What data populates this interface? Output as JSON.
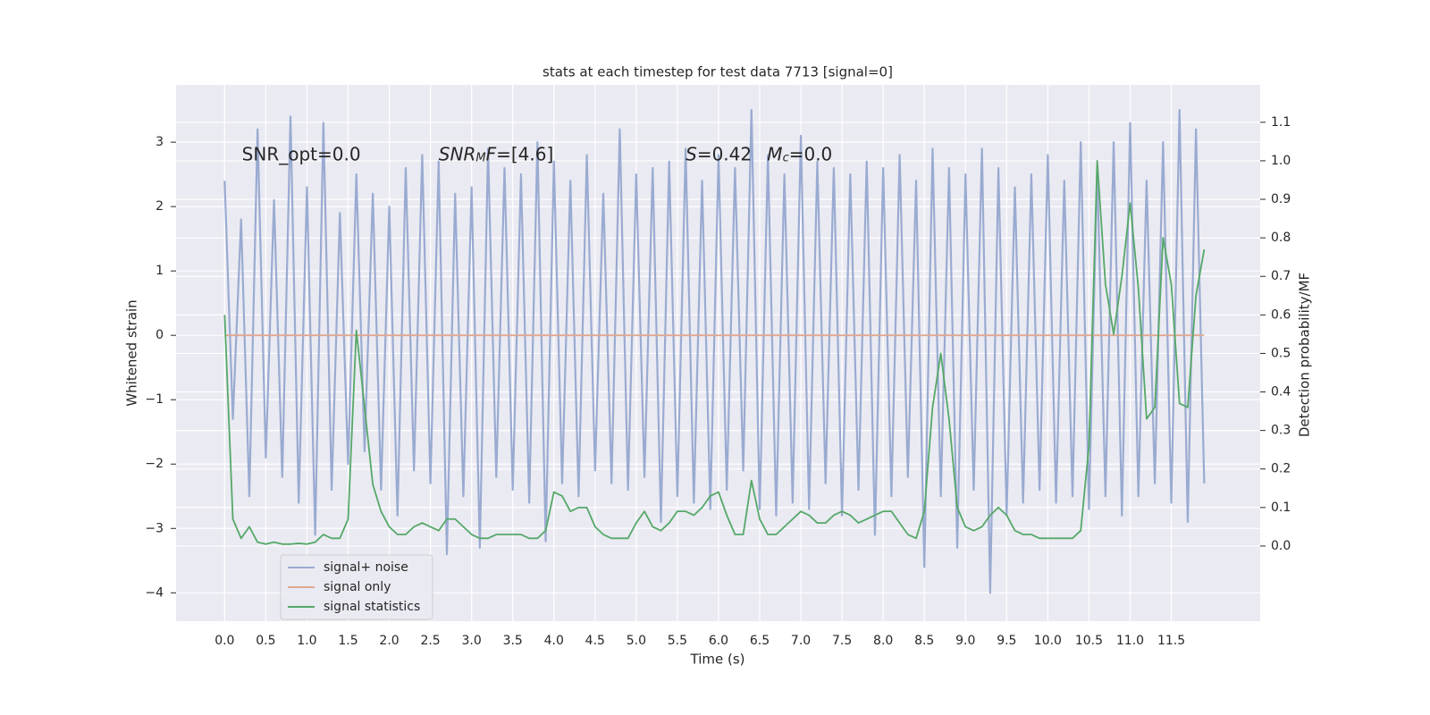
{
  "chart_data": {
    "type": "line",
    "title": "stats at each timestep for test data 7713 [signal=0]",
    "x_label": "Time (s)",
    "y_label": "Whitened strain",
    "y2_label": "Detection probability/MF",
    "x": [
      0.0,
      0.1,
      0.2,
      0.3,
      0.4,
      0.5,
      0.6,
      0.7,
      0.8,
      0.9,
      1.0,
      1.1,
      1.2,
      1.3,
      1.4,
      1.5,
      1.6,
      1.7,
      1.8,
      1.9,
      2.0,
      2.1,
      2.2,
      2.3,
      2.4,
      2.5,
      2.6,
      2.7,
      2.8,
      2.9,
      3.0,
      3.1,
      3.2,
      3.3,
      3.4,
      3.5,
      3.6,
      3.7,
      3.8,
      3.9,
      4.0,
      4.1,
      4.2,
      4.3,
      4.4,
      4.5,
      4.6,
      4.7,
      4.8,
      4.9,
      5.0,
      5.1,
      5.2,
      5.3,
      5.4,
      5.5,
      5.6,
      5.7,
      5.8,
      5.9,
      6.0,
      6.1,
      6.2,
      6.3,
      6.4,
      6.5,
      6.6,
      6.7,
      6.8,
      6.9,
      7.0,
      7.1,
      7.2,
      7.3,
      7.4,
      7.5,
      7.6,
      7.7,
      7.8,
      7.9,
      8.0,
      8.1,
      8.2,
      8.3,
      8.4,
      8.5,
      8.6,
      8.7,
      8.8,
      8.9,
      9.0,
      9.1,
      9.2,
      9.3,
      9.4,
      9.5,
      9.6,
      9.7,
      9.8,
      9.9,
      10.0,
      10.1,
      10.2,
      10.3,
      10.4,
      10.5,
      10.6,
      10.7,
      10.8,
      10.9,
      11.0,
      11.1,
      11.2,
      11.3,
      11.4,
      11.5,
      11.6,
      11.7,
      11.8,
      11.9
    ],
    "series": [
      {
        "name": "signal+ noise",
        "color": "#9aabd1",
        "values": [
          2.4,
          -1.3,
          1.8,
          -2.5,
          3.2,
          -1.9,
          2.1,
          -2.2,
          3.4,
          -2.6,
          2.3,
          -3.1,
          3.3,
          -2.4,
          1.9,
          -2.0,
          2.5,
          -1.8,
          2.2,
          -2.4,
          2.0,
          -2.8,
          2.6,
          -2.1,
          2.8,
          -2.3,
          2.7,
          -3.4,
          2.2,
          -2.5,
          2.3,
          -3.3,
          2.9,
          -2.2,
          2.6,
          -2.4,
          2.5,
          -2.6,
          3.0,
          -3.2,
          2.7,
          -2.3,
          2.4,
          -2.5,
          2.8,
          -2.1,
          2.2,
          -2.3,
          3.2,
          -2.4,
          2.5,
          -2.2,
          2.6,
          -2.9,
          2.7,
          -2.5,
          2.9,
          -2.6,
          2.4,
          -2.7,
          2.8,
          -2.4,
          2.6,
          -2.1,
          3.5,
          -2.7,
          2.8,
          -2.8,
          2.5,
          -2.6,
          3.1,
          -2.7,
          2.7,
          -2.3,
          2.6,
          -2.8,
          2.5,
          -2.4,
          2.7,
          -3.1,
          2.6,
          -2.5,
          2.8,
          -2.2,
          2.4,
          -3.6,
          2.9,
          -2.5,
          2.6,
          -3.3,
          2.5,
          -2.4,
          2.9,
          -4.0,
          2.6,
          -2.8,
          2.3,
          -2.6,
          2.5,
          -2.4,
          2.8,
          -2.6,
          2.4,
          -2.5,
          3.0,
          -2.7,
          2.6,
          -2.5,
          3.0,
          -2.8,
          3.3,
          -2.5,
          2.4,
          -2.3,
          3.0,
          -2.6,
          3.5,
          -2.9,
          3.2,
          -2.3
        ]
      },
      {
        "name": "signal only",
        "color": "#dfa88f",
        "values": [
          0,
          0,
          0,
          0,
          0,
          0,
          0,
          0,
          0,
          0,
          0,
          0,
          0,
          0,
          0,
          0,
          0,
          0,
          0,
          0,
          0,
          0,
          0,
          0,
          0,
          0,
          0,
          0,
          0,
          0,
          0,
          0,
          0,
          0,
          0,
          0,
          0,
          0,
          0,
          0,
          0,
          0,
          0,
          0,
          0,
          0,
          0,
          0,
          0,
          0,
          0,
          0,
          0,
          0,
          0,
          0,
          0,
          0,
          0,
          0,
          0,
          0,
          0,
          0,
          0,
          0,
          0,
          0,
          0,
          0,
          0,
          0,
          0,
          0,
          0,
          0,
          0,
          0,
          0,
          0,
          0,
          0,
          0,
          0,
          0,
          0,
          0,
          0,
          0,
          0,
          0,
          0,
          0,
          0,
          0,
          0,
          0,
          0,
          0,
          0,
          0,
          0,
          0,
          0,
          0,
          0,
          0,
          0,
          0,
          0,
          0,
          0,
          0,
          0,
          0,
          0,
          0,
          0,
          0,
          0
        ]
      },
      {
        "name": "signal statistics",
        "color": "#55a868",
        "axis": "y2",
        "values": [
          0.6,
          0.07,
          0.02,
          0.05,
          0.01,
          0.005,
          0.01,
          0.005,
          0.005,
          0.007,
          0.005,
          0.01,
          0.03,
          0.02,
          0.02,
          0.07,
          0.56,
          0.36,
          0.16,
          0.09,
          0.05,
          0.03,
          0.03,
          0.05,
          0.06,
          0.05,
          0.04,
          0.07,
          0.07,
          0.05,
          0.03,
          0.02,
          0.02,
          0.03,
          0.03,
          0.03,
          0.03,
          0.02,
          0.02,
          0.04,
          0.14,
          0.13,
          0.09,
          0.1,
          0.1,
          0.05,
          0.03,
          0.02,
          0.02,
          0.02,
          0.06,
          0.09,
          0.05,
          0.04,
          0.06,
          0.09,
          0.09,
          0.08,
          0.1,
          0.13,
          0.14,
          0.08,
          0.03,
          0.03,
          0.17,
          0.07,
          0.03,
          0.03,
          0.05,
          0.07,
          0.09,
          0.08,
          0.06,
          0.06,
          0.08,
          0.09,
          0.08,
          0.06,
          0.07,
          0.08,
          0.09,
          0.09,
          0.06,
          0.03,
          0.02,
          0.09,
          0.36,
          0.5,
          0.33,
          0.1,
          0.05,
          0.04,
          0.05,
          0.08,
          0.1,
          0.08,
          0.04,
          0.03,
          0.03,
          0.02,
          0.02,
          0.02,
          0.02,
          0.02,
          0.04,
          0.26,
          1.0,
          0.68,
          0.55,
          0.7,
          0.89,
          0.67,
          0.33,
          0.36,
          0.8,
          0.68,
          0.37,
          0.36,
          0.65,
          0.77
        ]
      }
    ],
    "xlim": [
      -0.59,
      12.58
    ],
    "ylim": [
      -4.44,
      3.89
    ],
    "y2lim": [
      -0.195,
      1.197
    ],
    "xticks": [
      {
        "value": 0,
        "label": "0.0"
      },
      0.5,
      {
        "value": 1,
        "label": "1.0"
      },
      1.5,
      {
        "value": 2,
        "label": "2.0"
      },
      2.5,
      {
        "value": 3,
        "label": "3.0"
      },
      3.5,
      {
        "value": 4,
        "label": "4.0"
      },
      4.5,
      {
        "value": 5,
        "label": "5.0"
      },
      5.5,
      {
        "value": 6,
        "label": "6.0"
      },
      6.5,
      {
        "value": 7,
        "label": "7.0"
      },
      7.5,
      {
        "value": 8,
        "label": "8.0"
      },
      8.5,
      {
        "value": 9,
        "label": "9.0"
      },
      9.5,
      {
        "value": 10,
        "label": "10.0"
      },
      10.5,
      {
        "value": 11,
        "label": "11.0"
      },
      11.5
    ],
    "yticks": [
      {
        "value": -4,
        "label": "−4"
      },
      {
        "value": -3,
        "label": "−3"
      },
      {
        "value": -2,
        "label": "−2"
      },
      {
        "value": -1,
        "label": "−1"
      },
      0,
      1,
      2,
      3
    ],
    "y2ticks": [
      {
        "value": 0,
        "label": "0.0"
      },
      0.1,
      0.2,
      0.3,
      0.4,
      0.5,
      0.6,
      0.7,
      0.8,
      0.9,
      {
        "value": 1,
        "label": "1.0"
      },
      1.1
    ],
    "grid": true,
    "legend": "lower left",
    "annotations": [
      {
        "x": 0.21,
        "y": 2.8,
        "parts": [
          {
            "text": "SNR_opt=0.0"
          }
        ]
      },
      {
        "x": 2.6,
        "y": 2.8,
        "parts": [
          {
            "text": "SNR",
            "italic": true
          },
          {
            "text": "M",
            "italic": true,
            "sub": true
          },
          {
            "text": "F",
            "italic": true
          },
          {
            "text": "=[4.6]"
          }
        ]
      },
      {
        "x": 5.6,
        "y": 2.8,
        "parts": [
          {
            "text": "S",
            "italic": true
          },
          {
            "text": "=0.42"
          }
        ]
      },
      {
        "x": 6.59,
        "y": 2.8,
        "parts": [
          {
            "text": "M",
            "italic": true
          },
          {
            "text": "c",
            "italic": true,
            "sub": true
          },
          {
            "text": "=0.0"
          }
        ]
      }
    ]
  }
}
